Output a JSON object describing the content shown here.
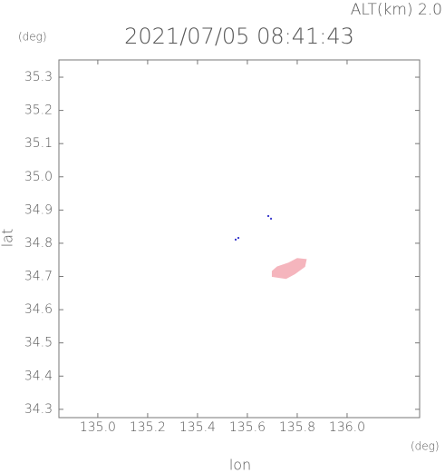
{
  "chart_data": {
    "type": "scatter",
    "subtitle": "ALT(km) 2.0",
    "title": "2021/07/05 08:41:43",
    "yunit": "(deg)",
    "xunit": "(deg)",
    "xlabel": "lon",
    "ylabel": "lat",
    "xlim": [
      134.844,
      136.291
    ],
    "ylim": [
      34.275,
      35.352
    ],
    "xticks": [
      {
        "value": 135,
        "label": "135.0"
      },
      135.2,
      135.4,
      135.6,
      135.8,
      {
        "value": 136,
        "label": "136.0"
      }
    ],
    "yticks": [
      34.3,
      34.4,
      34.5,
      34.6,
      34.7,
      34.8,
      34.9,
      {
        "value": 35,
        "label": "35.0"
      },
      35.1,
      35.2,
      35.3
    ],
    "series": [
      {
        "style": "area",
        "color": "#f5b5bd",
        "x": [
          135.7,
          135.755,
          135.79,
          135.83,
          135.836,
          135.8,
          135.764,
          135.72,
          135.7
        ],
        "y": [
          34.7,
          34.694,
          34.708,
          34.73,
          34.751,
          34.754,
          34.74,
          34.729,
          34.716
        ]
      },
      {
        "style": "points",
        "color": "#3a3acc",
        "x": [
          135.684,
          135.695,
          135.553,
          135.564
        ],
        "y": [
          34.882,
          34.874,
          34.811,
          34.816
        ]
      }
    ]
  }
}
